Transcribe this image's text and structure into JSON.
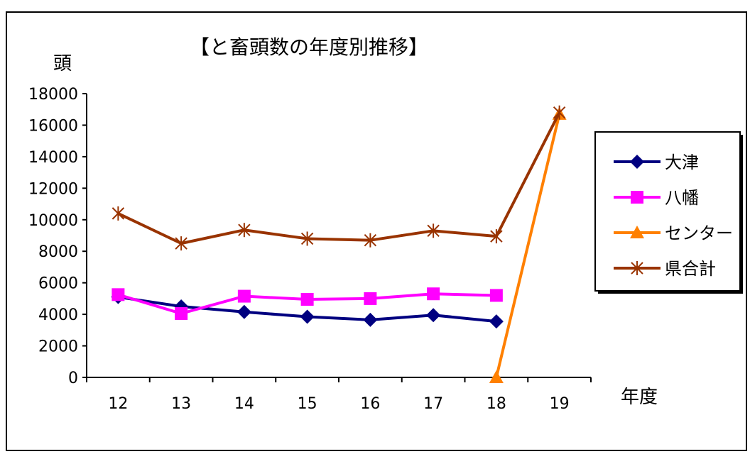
{
  "chart_data": {
    "type": "line",
    "title": "【と畜頭数の年度別推移】",
    "ylabel": "頭",
    "xlabel": "年度",
    "categories": [
      "12",
      "13",
      "14",
      "15",
      "16",
      "17",
      "18",
      "19"
    ],
    "ylim": [
      0,
      18000
    ],
    "yticks": [
      "0",
      "2000",
      "4000",
      "6000",
      "8000",
      "10000",
      "12000",
      "14000",
      "16000",
      "18000"
    ],
    "legend_position": "right",
    "grid": false,
    "series": [
      {
        "name": "大津",
        "color": "#000080",
        "marker": "diamond",
        "values": [
          5100,
          4500,
          4150,
          3850,
          3650,
          3950,
          3550,
          null
        ]
      },
      {
        "name": "八幡",
        "color": "#ff00ff",
        "marker": "square",
        "values": [
          5250,
          4050,
          5150,
          4950,
          5000,
          5300,
          5200,
          null
        ]
      },
      {
        "name": "センター",
        "color": "#ff8000",
        "marker": "triangle",
        "values": [
          null,
          null,
          null,
          null,
          null,
          null,
          0,
          16700
        ]
      },
      {
        "name": "県合計",
        "color": "#993300",
        "marker": "x",
        "values": [
          10400,
          8500,
          9350,
          8800,
          8700,
          9300,
          8950,
          16800
        ]
      }
    ]
  }
}
